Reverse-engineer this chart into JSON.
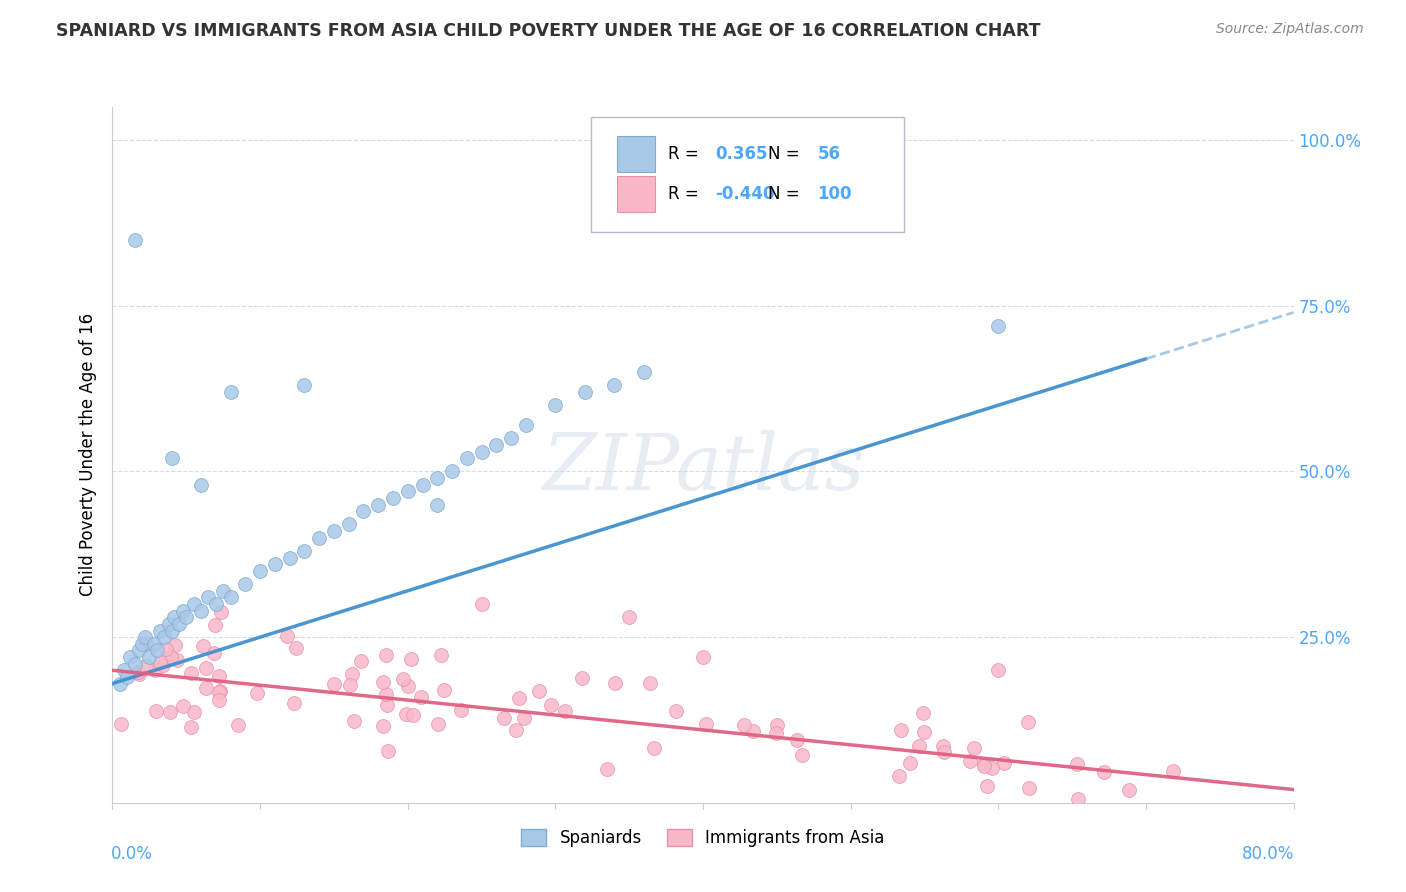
{
  "title": "SPANIARD VS IMMIGRANTS FROM ASIA CHILD POVERTY UNDER THE AGE OF 16 CORRELATION CHART",
  "source": "Source: ZipAtlas.com",
  "ylabel": "Child Poverty Under the Age of 16",
  "spaniards_color": "#a8c8e8",
  "spaniards_edge": "#80aad0",
  "asia_color": "#f8b8c8",
  "asia_edge": "#e890a8",
  "trend_blue": "#4090d0",
  "trend_blue_dash": "#90bce0",
  "trend_pink": "#e06080",
  "watermark": "ZIPatlas",
  "xlim": [
    0.0,
    0.8
  ],
  "ylim": [
    0.0,
    1.05
  ],
  "background": "#ffffff",
  "grid_color": "#d0d8e8",
  "title_color": "#333333",
  "source_color": "#888888",
  "axis_label_color": "#4da6ff",
  "right_ytick_labels": [
    "25.0%",
    "50.0%",
    "75.0%",
    "100.0%"
  ],
  "right_ytick_vals": [
    0.25,
    0.5,
    0.75,
    1.0
  ],
  "legend_R_blue": "0.365",
  "legend_N_blue": "56",
  "legend_R_pink": "-0.440",
  "legend_N_pink": "100"
}
